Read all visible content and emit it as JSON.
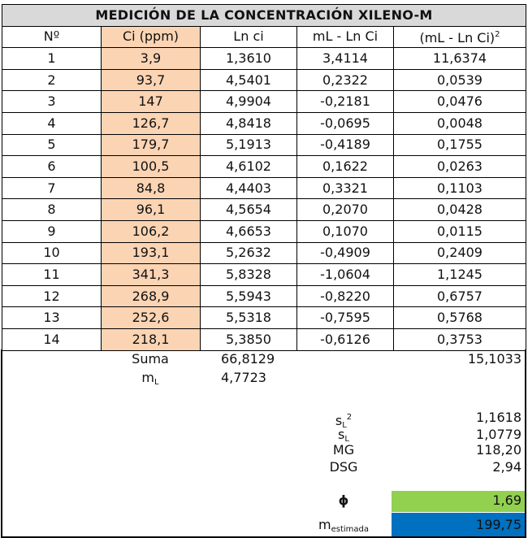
{
  "table": {
    "title": "MEDICIÓN DE LA CONCENTRACIÓN XILENO-M",
    "headers": {
      "no": "Nº",
      "ci": "Ci (ppm)",
      "lnci": "Ln ci",
      "ml_lnci": "mL - Ln Ci",
      "ml_lnci_sq_base": "(mL - Ln Ci)",
      "ml_lnci_sq_exp": "2"
    },
    "rows": [
      {
        "no": "1",
        "ci": "3,9",
        "lnci": "1,3610",
        "diff": "3,4114",
        "sq": "11,6374"
      },
      {
        "no": "2",
        "ci": "93,7",
        "lnci": "4,5401",
        "diff": "0,2322",
        "sq": "0,0539"
      },
      {
        "no": "3",
        "ci": "147",
        "lnci": "4,9904",
        "diff": "-0,2181",
        "sq": "0,0476"
      },
      {
        "no": "4",
        "ci": "126,7",
        "lnci": "4,8418",
        "diff": "-0,0695",
        "sq": "0,0048"
      },
      {
        "no": "5",
        "ci": "179,7",
        "lnci": "5,1913",
        "diff": "-0,4189",
        "sq": "0,1755"
      },
      {
        "no": "6",
        "ci": "100,5",
        "lnci": "4,6102",
        "diff": "0,1622",
        "sq": "0,0263"
      },
      {
        "no": "7",
        "ci": "84,8",
        "lnci": "4,4403",
        "diff": "0,3321",
        "sq": "0,1103"
      },
      {
        "no": "8",
        "ci": "96,1",
        "lnci": "4,5654",
        "diff": "0,2070",
        "sq": "0,0428"
      },
      {
        "no": "9",
        "ci": "106,2",
        "lnci": "4,6653",
        "diff": "0,1070",
        "sq": "0,0115"
      },
      {
        "no": "10",
        "ci": "193,1",
        "lnci": "5,2632",
        "diff": "-0,4909",
        "sq": "0,2409"
      },
      {
        "no": "11",
        "ci": "341,3",
        "lnci": "5,8328",
        "diff": "-1,0604",
        "sq": "1,1245"
      },
      {
        "no": "12",
        "ci": "268,9",
        "lnci": "5,5943",
        "diff": "-0,8220",
        "sq": "0,6757"
      },
      {
        "no": "13",
        "ci": "252,6",
        "lnci": "5,5318",
        "diff": "-0,7595",
        "sq": "0,5768"
      },
      {
        "no": "14",
        "ci": "218,1",
        "lnci": "5,3850",
        "diff": "-0,6126",
        "sq": "0,3753"
      }
    ]
  },
  "summary": {
    "suma_label": "Suma",
    "suma_lnci": "66,8129",
    "suma_sq": "15,1033",
    "ml_label_base": "m",
    "ml_label_sub": "L",
    "ml_value": "4,7723",
    "sl2_label_base": "s",
    "sl2_label_sub": "L",
    "sl2_label_sup": "2",
    "sl2_value": "1,1618",
    "sl_label_base": "s",
    "sl_label_sub": "L",
    "sl_value": "1,0779",
    "mg_label": "MG",
    "mg_value": "118,20",
    "dsg_label": "DSG",
    "dsg_value": "2,94",
    "phi_label": "ϕ",
    "phi_value": "1,69",
    "mest_label_base": "m",
    "mest_label_sub": "estimada",
    "mest_value": "199,75"
  },
  "colors": {
    "ci_column": "#fbd4b4",
    "title_bg": "#d9d9d9",
    "phi_box": "#92d050",
    "mest_box": "#0070c0"
  }
}
